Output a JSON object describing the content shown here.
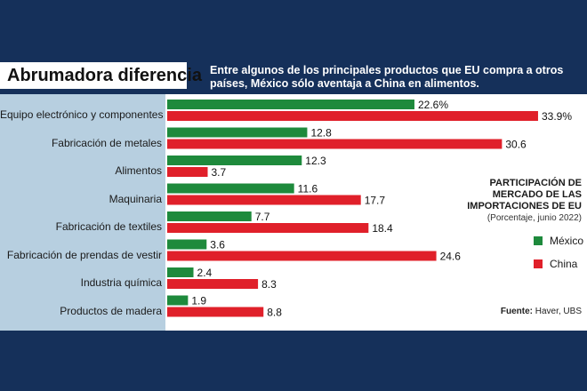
{
  "header": {
    "title": "Abrumadora diferencia",
    "subtitle": "Entre algunos de los principales productos que EU compra a otros países, México sólo aventaja a China en alimentos."
  },
  "legend": {
    "title": "PARTICIPACIÓN DE MERCADO DE LAS IMPORTACIONES DE EU",
    "note": "(Porcentaje, junio 2022)",
    "mexico": "México",
    "china": "China"
  },
  "source": {
    "label": "Fuente:",
    "text": "Haver, UBS"
  },
  "colors": {
    "mexico": "#1e8a3c",
    "china": "#e0202a"
  },
  "chart_data": {
    "type": "bar",
    "orientation": "horizontal",
    "categories": [
      "Equipo electrónico y componentes",
      "Fabricación de metales",
      "Alimentos",
      "Maquinaria",
      "Fabricación de textiles",
      "Fabricación de prendas de vestir",
      "Industria química",
      "Productos de madera"
    ],
    "series": [
      {
        "name": "México",
        "values": [
          22.6,
          12.8,
          12.3,
          11.6,
          7.7,
          3.6,
          2.4,
          1.9
        ],
        "labels": [
          "22.6%",
          "12.8",
          "12.3",
          "11.6",
          "7.7",
          "3.6",
          "2.4",
          "1.9"
        ]
      },
      {
        "name": "China",
        "values": [
          33.9,
          30.6,
          3.7,
          17.7,
          18.4,
          24.6,
          8.3,
          8.8
        ],
        "labels": [
          "33.9%",
          "30.6",
          "3.7",
          "17.7",
          "18.4",
          "24.6",
          "8.3",
          "8.8"
        ]
      }
    ],
    "xlim": [
      0,
      35
    ]
  }
}
